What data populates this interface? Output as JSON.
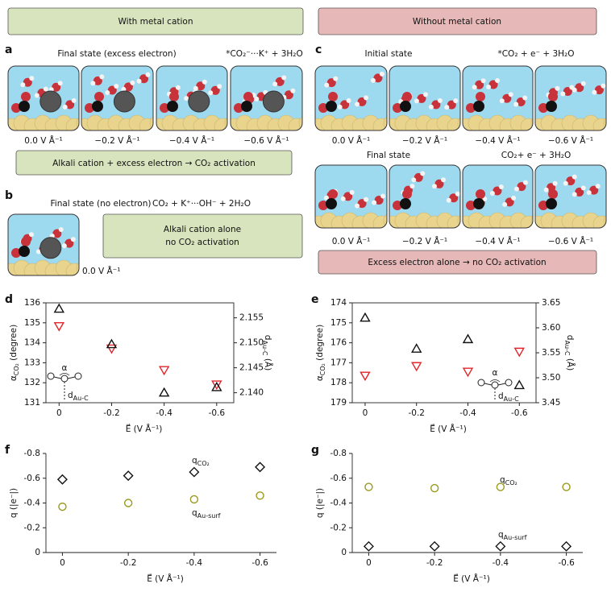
{
  "panels": {
    "header_left": "With metal cation",
    "header_right": "Without metal cation",
    "a": {
      "label": "a",
      "title": "Final state (excess electron)",
      "reaction": "*CO₂⁻···K⁺ + 3H₂O",
      "potentials": [
        "0.0 V Å⁻¹",
        "−0.2 V Å⁻¹",
        "−0.4 V Å⁻¹",
        "−0.6 V Å⁻¹"
      ],
      "conclusion": "Alkali cation + excess electron → CO₂ activation"
    },
    "b": {
      "label": "b",
      "title": "Final state (no electron)",
      "reaction": "CO₂ + K⁺···OH⁻ + 2H₂O",
      "potential": "0.0 V Å⁻¹",
      "conclusion": [
        "Alkali cation alone",
        "no CO₂ activation"
      ]
    },
    "c": {
      "label": "c",
      "initial_title": "Initial state",
      "initial_reaction": "*CO₂ + e⁻ + 3H₂O",
      "initial_potentials": [
        "0.0 V Å⁻¹",
        "−0.2 V Å⁻¹",
        "−0.4 V Å⁻¹",
        "−0.6 V Å⁻¹"
      ],
      "final_title": "Final state",
      "final_reaction": "CO₂+ e⁻ + 3H₂O",
      "final_potentials": [
        "0.0 V Å⁻¹",
        "−0.2 V Å⁻¹",
        "−0.4 V Å⁻¹",
        "−0.6 V Å⁻¹"
      ],
      "conclusion": "Excess electron alone → no CO₂ activation"
    }
  },
  "chart_data": [
    {
      "type": "scatter",
      "label": "d",
      "x": [
        0,
        -0.2,
        -0.4,
        -0.6
      ],
      "xlim": [
        0.05,
        -0.665
      ],
      "xticks": [
        0,
        -0.2,
        -0.4,
        -0.6
      ],
      "xlabel": "E⃗ (V Å⁻¹)",
      "ylabel": {
        "text": "α",
        "sub": "CO₂",
        "after": " (degree)"
      },
      "ycolor": "#e3242b",
      "ylim": [
        131,
        136
      ],
      "yticks": [
        131,
        132,
        133,
        134,
        135,
        136
      ],
      "y2label": {
        "text": "d",
        "sub": "Au-C",
        "after": " (Å)"
      },
      "y2lim": [
        2.138,
        2.158
      ],
      "y2ticks": [
        {
          "value": 2.14,
          "label": "2.140"
        },
        2.145,
        {
          "value": 2.15,
          "label": "2.150"
        },
        2.155
      ],
      "frame": true,
      "series": [
        {
          "color": "#e3242b",
          "marker": "triangle-down",
          "values": [
            134.84,
            133.72,
            132.64,
            131.92
          ]
        },
        {
          "color": "#111111",
          "marker": "triangle-up",
          "axis": "y2",
          "values": [
            2.1568,
            2.1497,
            2.14,
            2.1411
          ]
        }
      ],
      "annotations": [
        "α",
        {
          "text": "d",
          "sub": "Au-C"
        }
      ]
    },
    {
      "type": "scatter",
      "label": "e",
      "x": [
        0,
        -0.2,
        -0.4,
        -0.6
      ],
      "xlim": [
        0.05,
        -0.665
      ],
      "xticks": [
        0,
        -0.2,
        -0.4,
        -0.6
      ],
      "xlabel": "E⃗ (V Å⁻¹)",
      "ylabel": {
        "text": "α",
        "sub": "CO₂",
        "after": " (degree)"
      },
      "ycolor": "#e3242b",
      "ylim": [
        179,
        174
      ],
      "yticks": [
        174,
        175,
        176,
        177,
        178,
        179
      ],
      "y2label": {
        "text": "d",
        "sub": "Au-C",
        "after": " (Å)"
      },
      "y2lim": [
        3.45,
        3.65
      ],
      "y2ticks": [
        3.45,
        {
          "value": 3.5,
          "label": "3.50"
        },
        3.55,
        {
          "value": 3.6,
          "label": "3.60"
        },
        3.65
      ],
      "frame": true,
      "series": [
        {
          "color": "#e3242b",
          "marker": "triangle-down",
          "values": [
            177.64,
            177.16,
            177.44,
            176.44
          ]
        },
        {
          "color": "#111111",
          "marker": "triangle-up",
          "axis": "y2",
          "values": [
            3.62,
            3.558,
            3.577,
            3.485
          ]
        }
      ],
      "annotations": [
        "α",
        {
          "text": "d",
          "sub": "Au-C"
        }
      ]
    },
    {
      "type": "scatter",
      "label": "f",
      "x": [
        0,
        -0.2,
        -0.4,
        -0.6
      ],
      "xlim": [
        0.05,
        -0.65
      ],
      "xticks": [
        0,
        -0.2,
        -0.4,
        -0.6
      ],
      "xlabel": "E⃗ (V Å⁻¹)",
      "ylabel": "q (|e⁻|)",
      "ylim": [
        0,
        -0.8
      ],
      "yticks": [
        0,
        -0.2,
        -0.4,
        -0.6,
        -0.8
      ],
      "frame": false,
      "series": [
        {
          "color": "#111111",
          "marker": "diamond",
          "values": [
            -0.59,
            -0.62,
            -0.65,
            -0.69
          ]
        },
        {
          "color": "#9a9a1e",
          "marker": "circle",
          "values": [
            -0.37,
            -0.4,
            -0.43,
            -0.46
          ]
        }
      ],
      "annotations": [
        {
          "text": "q",
          "sub": "CO₂"
        },
        {
          "text": "q",
          "sub": "Au-surf"
        }
      ]
    },
    {
      "type": "scatter",
      "label": "g",
      "x": [
        0,
        -0.2,
        -0.4,
        -0.6
      ],
      "xlim": [
        0.05,
        -0.65
      ],
      "xticks": [
        0,
        -0.2,
        -0.4,
        -0.6
      ],
      "xlabel": "E⃗ (V Å⁻¹)",
      "ylabel": "q (|e⁻|)",
      "ylim": [
        0,
        -0.8
      ],
      "yticks": [
        0,
        -0.2,
        -0.4,
        -0.6,
        -0.8
      ],
      "frame": false,
      "series": [
        {
          "color": "#111111",
          "marker": "diamond",
          "values": [
            -0.05,
            -0.05,
            -0.05,
            -0.05
          ]
        },
        {
          "color": "#9a9a1e",
          "marker": "circle",
          "values": [
            -0.53,
            -0.52,
            -0.53,
            -0.53
          ]
        }
      ],
      "annotations": [
        {
          "text": "q",
          "sub": "CO₂"
        },
        {
          "text": "q",
          "sub": "Au-surf"
        }
      ]
    }
  ]
}
